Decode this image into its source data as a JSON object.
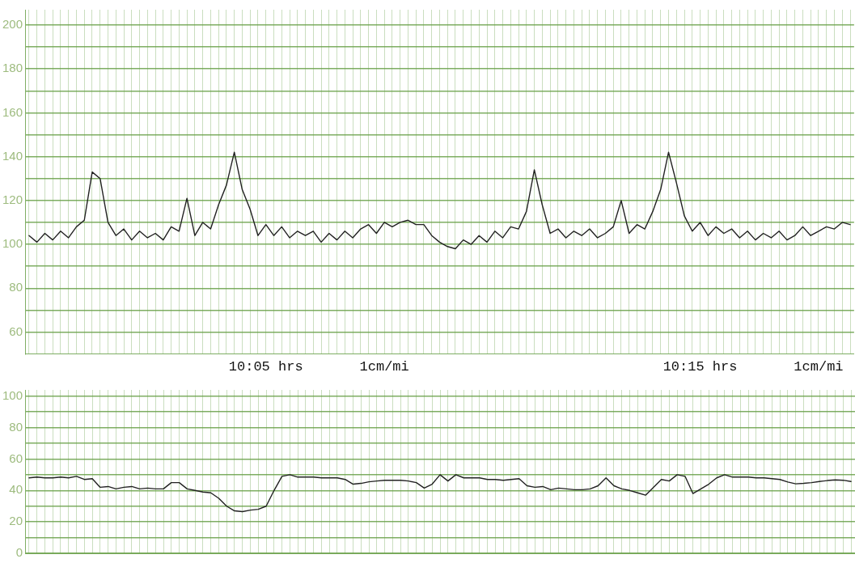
{
  "chart_data": [
    {
      "type": "line",
      "categories": [
        null,
        null,
        null,
        null,
        null,
        null,
        null,
        null,
        null,
        null,
        null,
        null,
        null,
        null,
        null,
        null,
        null,
        null,
        null,
        null,
        null,
        null,
        null,
        null,
        null,
        null,
        null,
        null,
        null,
        null,
        "10:05 hrs",
        null,
        null,
        null,
        null,
        null,
        null,
        null,
        null,
        null,
        null,
        null,
        null,
        null,
        null,
        "1cm/mi",
        null,
        null,
        null,
        null,
        null,
        null,
        null,
        null,
        null,
        null,
        null,
        null,
        null,
        null,
        null,
        null,
        null,
        null,
        null,
        null,
        null,
        null,
        null,
        null,
        null,
        null,
        null,
        null,
        null,
        null,
        null,
        null,
        null,
        null,
        null,
        null,
        null,
        null,
        null,
        "10:15 hrs",
        null,
        null,
        null,
        null,
        null,
        null,
        null,
        null,
        null,
        null,
        null,
        null,
        null,
        null,
        "1cm/mi",
        null,
        null,
        null,
        null
      ],
      "series": [
        {
          "color": "#222222",
          "values": [
            104,
            101,
            105,
            102,
            106,
            103,
            108,
            111,
            133,
            130,
            110,
            104,
            107,
            102,
            106,
            103,
            105,
            102,
            108,
            106,
            121,
            104,
            110,
            107,
            118,
            127,
            142,
            125,
            116,
            104,
            109,
            104,
            108,
            103,
            106,
            104,
            106,
            101,
            105,
            102,
            106,
            103,
            107,
            109,
            105,
            110,
            108,
            110,
            111,
            109,
            109,
            104,
            101,
            99,
            98,
            102,
            100,
            104,
            101,
            106,
            103,
            108,
            107,
            115,
            134,
            118,
            105,
            107,
            103,
            106,
            104,
            107,
            103,
            105,
            108,
            120,
            105,
            109,
            107,
            115,
            125,
            142,
            128,
            113,
            106,
            110,
            104,
            108,
            105,
            107,
            103,
            106,
            102,
            105,
            103,
            106,
            102,
            104,
            108,
            104,
            106,
            108,
            107,
            110,
            109
          ]
        }
      ],
      "ylim": [
        50,
        207
      ],
      "yticks": [
        60,
        {
          "value": 70,
          "label": null
        },
        80,
        {
          "value": 90,
          "label": null
        },
        100,
        {
          "value": 110,
          "label": null
        },
        120,
        {
          "value": 130,
          "label": null
        },
        140,
        {
          "value": 150,
          "label": null
        },
        160,
        {
          "value": 170,
          "label": null
        },
        180,
        {
          "value": 190,
          "label": null
        },
        200
      ],
      "grid": true,
      "legend": false,
      "marker": "none"
    },
    {
      "type": "line",
      "categories": [
        null,
        null,
        null,
        null,
        null,
        null,
        null,
        null,
        null,
        null,
        null,
        null,
        null,
        null,
        null,
        null,
        null,
        null,
        null,
        null,
        null,
        null,
        null,
        null,
        null,
        null,
        null,
        null,
        null,
        null,
        null,
        null,
        null,
        null,
        null,
        null,
        null,
        null,
        null,
        null,
        null,
        null,
        null,
        null,
        null,
        null,
        null,
        null,
        null,
        null,
        null,
        null,
        null,
        null,
        null,
        null,
        null,
        null,
        null,
        null,
        null,
        null,
        null,
        null,
        null,
        null,
        null,
        null,
        null,
        null,
        null,
        null,
        null,
        null,
        null,
        null,
        null,
        null,
        null,
        null,
        null,
        null,
        null,
        null,
        null,
        null,
        null,
        null,
        null,
        null,
        null,
        null,
        null,
        null,
        null,
        null,
        null,
        null,
        null,
        null,
        null,
        null,
        null,
        null,
        null
      ],
      "series": [
        {
          "color": "#222222",
          "values": [
            48,
            48.5,
            48,
            48,
            48.5,
            48,
            49,
            47,
            47.5,
            42,
            42.5,
            41,
            42,
            42.5,
            41,
            41.5,
            41,
            41,
            45,
            45,
            41,
            40,
            39,
            38.5,
            35,
            30,
            27,
            26.5,
            27.5,
            28,
            30,
            40,
            49,
            50,
            48.5,
            48.5,
            48.5,
            48,
            48,
            48,
            47,
            44,
            44.5,
            45.5,
            46,
            46.5,
            46.5,
            46.5,
            46,
            45,
            41.5,
            44,
            50,
            46,
            50,
            48,
            48,
            48,
            47,
            47,
            46.5,
            47,
            47.5,
            43,
            42,
            42.5,
            40.5,
            41.5,
            41,
            40.5,
            40.5,
            41,
            43,
            48,
            43,
            41,
            40,
            38.5,
            37,
            42,
            47,
            46,
            50,
            49,
            38,
            41,
            44,
            48,
            50,
            48.5,
            48.5,
            48.5,
            48,
            48,
            47.5,
            47,
            45.4,
            44.2,
            44.5,
            45,
            45.7,
            46.3,
            46.7,
            46.5,
            45.7
          ]
        }
      ],
      "ylim": [
        0,
        104
      ],
      "yticks": [
        0,
        {
          "value": 10,
          "label": null
        },
        20,
        {
          "value": 30,
          "label": null
        },
        40,
        {
          "value": 50,
          "label": null
        },
        60,
        {
          "value": 70,
          "label": null
        },
        80,
        {
          "value": 90,
          "label": null
        },
        100
      ],
      "grid": true,
      "legend": false,
      "marker": "none",
      "tick_labels": "y"
    }
  ]
}
